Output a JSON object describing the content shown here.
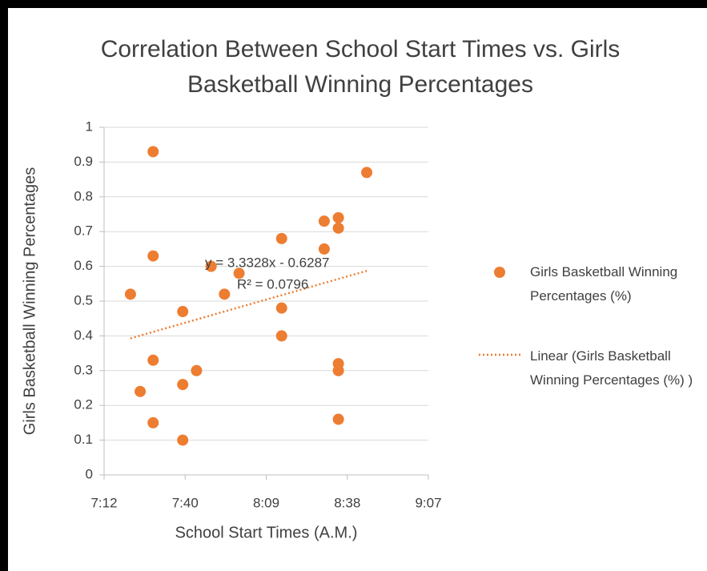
{
  "chart_data": {
    "type": "scatter",
    "title": "Correlation Between School Start Times vs. Girls Basketball Winning Percentages",
    "x_label": "School Start Times (A.M.)",
    "y_label": "Girls Basketball Winning Percentages",
    "series": [
      {
        "name": "Girls Basketball Winning Percentages (%)",
        "color": "#ed7d31",
        "x": [
          0.3121,
          0.3121,
          0.3065,
          0.3089,
          0.3121,
          0.3121,
          0.3194,
          0.3194,
          0.3194,
          0.3228,
          0.3264,
          0.3297,
          0.3333,
          0.3438,
          0.3438,
          0.3438,
          0.3543,
          0.3543,
          0.3578,
          0.3578,
          0.3578,
          0.3578,
          0.3578,
          0.3648
        ],
        "values": [
          0.93,
          0.63,
          0.52,
          0.24,
          0.33,
          0.15,
          0.47,
          0.26,
          0.1,
          0.3,
          0.6,
          0.52,
          0.58,
          0.68,
          0.48,
          0.4,
          0.73,
          0.65,
          0.74,
          0.71,
          0.32,
          0.3,
          0.16,
          0.87
        ]
      }
    ],
    "trendline": {
      "name": "Linear (Girls Basketball Winning Percentages (%) )",
      "color": "#ed7d31",
      "equation": "y = 3.3328x - 0.6287",
      "r_squared": "R² = 0.0796",
      "slope": 3.3328,
      "intercept": -0.6287
    },
    "xlim": [
      0.3,
      0.38
    ],
    "xticks": [
      {
        "value": 0.3,
        "label": "7:12"
      },
      {
        "value": 0.32,
        "label": "7:40"
      },
      {
        "value": 0.34,
        "label": "8:09"
      },
      {
        "value": 0.36,
        "label": "8:38"
      },
      {
        "value": 0.38,
        "label": "9:07"
      }
    ],
    "ylim": [
      0,
      1
    ],
    "yticks": [
      0,
      0.1,
      0.2,
      0.3,
      0.4,
      0.5,
      0.6,
      0.7,
      0.8,
      0.9,
      1
    ],
    "grid": true
  }
}
